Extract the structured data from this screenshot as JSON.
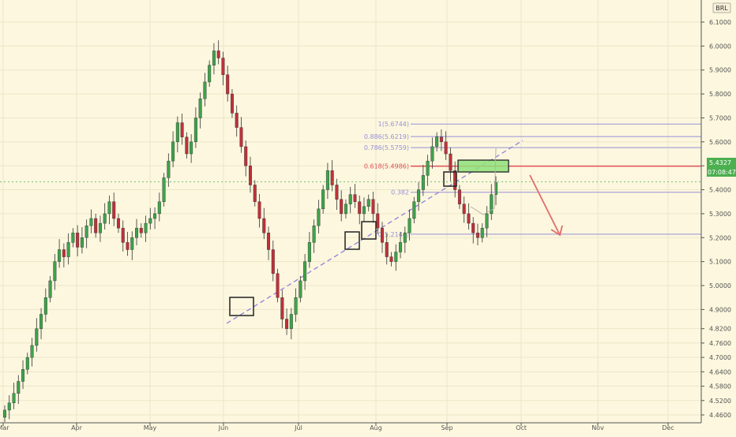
{
  "symbol_badge": "BRL",
  "price_tag": {
    "value": "5.4327",
    "countdown": "07:08:47"
  },
  "chart_data": {
    "type": "candlestick",
    "title": "",
    "xlabel": "",
    "ylabel": "",
    "ylim": [
      4.46,
      6.1
    ],
    "y_ticks": [
      "6.1000",
      "6.0000",
      "5.9000",
      "5.8000",
      "5.7000",
      "5.6000",
      "5.5000",
      "5.4000",
      "5.3000",
      "5.2000",
      "5.1000",
      "5.0000",
      "4.9000",
      "4.8200",
      "4.7600",
      "4.7000",
      "4.6400",
      "4.5800",
      "4.5200",
      "4.4600"
    ],
    "x_ticks": [
      "Mar",
      "Apr",
      "May",
      "Jun",
      "Jul",
      "Aug",
      "Sep",
      "Oct",
      "Nov",
      "Dec"
    ],
    "grid": true,
    "fib_levels": [
      {
        "label": "1(5.6744)",
        "value": 5.6744,
        "color": "#9990d8"
      },
      {
        "label": "0.886(5.6219)",
        "value": 5.6219,
        "color": "#9990d8"
      },
      {
        "label": "0.786(5.5759)",
        "value": 5.5759,
        "color": "#9990d8"
      },
      {
        "label": "0.618(5.4986)",
        "value": 5.4986,
        "color": "#e0505a"
      },
      {
        "label": "0.382",
        "value": 5.3896,
        "color": "#9990d8"
      },
      {
        "label": "0(5.2144)",
        "value": 5.2144,
        "color": "#9990d8"
      }
    ],
    "trendline": {
      "from": [
        "Jun",
        4.78
      ],
      "to": [
        "Sep",
        5.49
      ]
    },
    "candles_close": [
      4.48,
      4.51,
      4.55,
      4.6,
      4.65,
      4.7,
      4.75,
      4.82,
      4.88,
      4.95,
      5.02,
      5.1,
      5.15,
      5.12,
      5.18,
      5.22,
      5.16,
      5.2,
      5.25,
      5.28,
      5.22,
      5.26,
      5.3,
      5.35,
      5.28,
      5.24,
      5.18,
      5.15,
      5.2,
      5.24,
      5.22,
      5.26,
      5.28,
      5.3,
      5.35,
      5.45,
      5.52,
      5.6,
      5.68,
      5.62,
      5.55,
      5.6,
      5.7,
      5.78,
      5.85,
      5.92,
      5.98,
      5.95,
      5.88,
      5.8,
      5.72,
      5.66,
      5.58,
      5.5,
      5.42,
      5.35,
      5.28,
      5.22,
      5.15,
      5.05,
      4.95,
      4.86,
      4.82,
      4.88,
      4.95,
      5.02,
      5.1,
      5.18,
      5.25,
      5.32,
      5.4,
      5.48,
      5.42,
      5.36,
      5.3,
      5.34,
      5.38,
      5.35,
      5.3,
      5.33,
      5.36,
      5.3,
      5.24,
      5.18,
      5.12,
      5.1,
      5.14,
      5.18,
      5.22,
      5.28,
      5.35,
      5.4,
      5.46,
      5.52,
      5.58,
      5.62,
      5.6,
      5.55,
      5.48,
      5.4,
      5.34,
      5.3,
      5.26,
      5.22,
      5.2,
      5.24,
      5.3,
      5.38,
      5.43
    ]
  }
}
